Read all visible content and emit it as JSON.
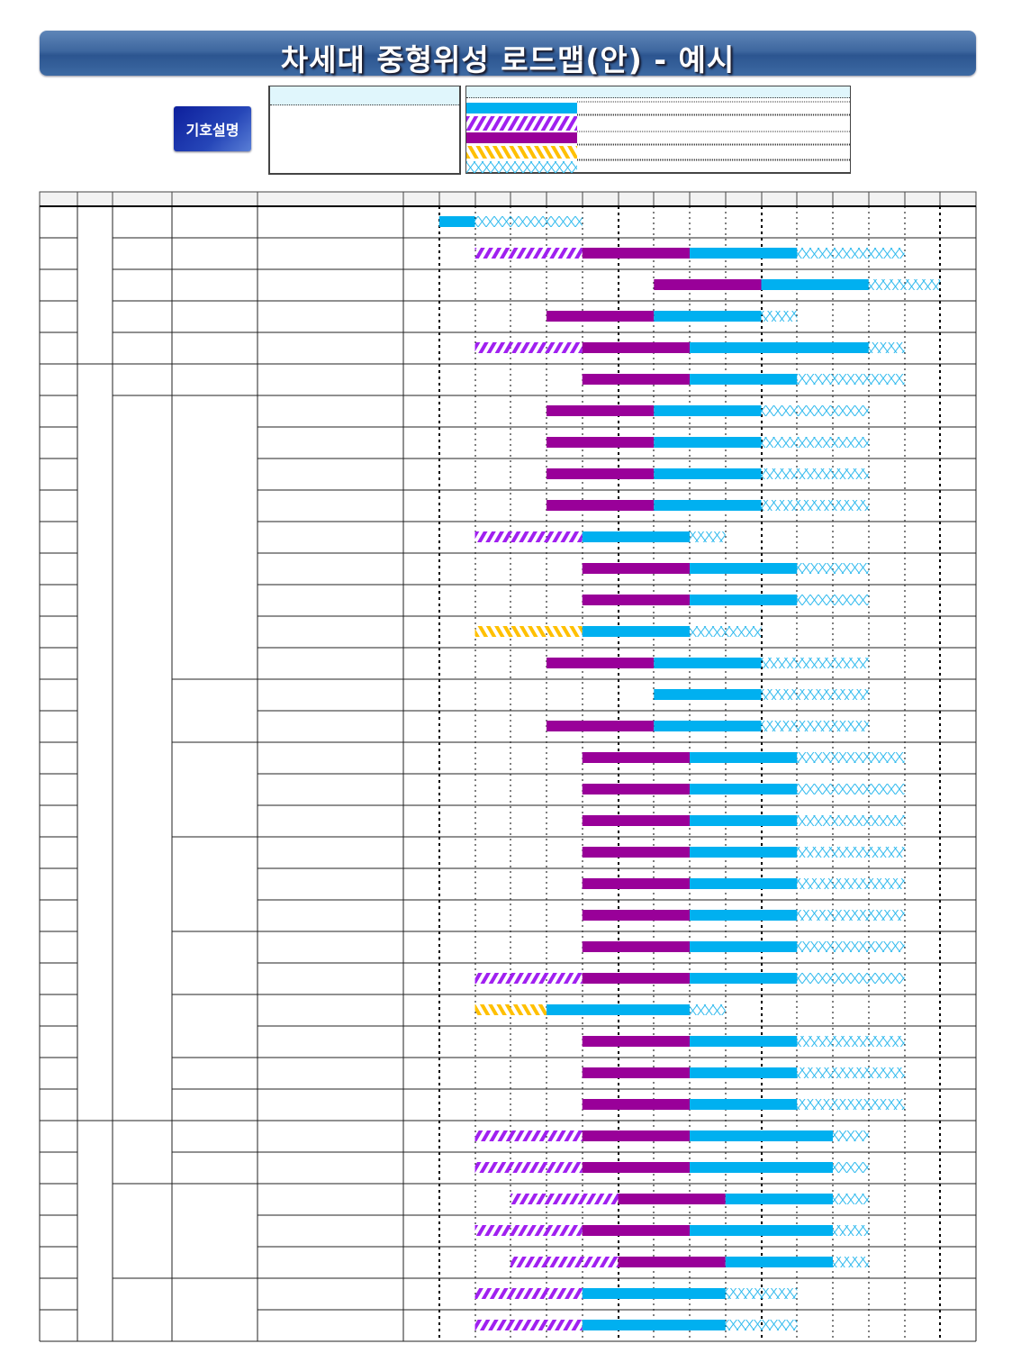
{
  "title": "차세대 중형위성 로드맵(안) - 예시",
  "legend": {
    "button_label": "기호설명",
    "swatches": [
      "blue",
      "purple-hatch",
      "purple",
      "orange-hatch",
      "blue-cross"
    ]
  },
  "colors": {
    "blue": "#00b0f0",
    "purple": "#990099",
    "purple_hatch": "#a020f0",
    "orange_hatch": "#ffc000",
    "cross": "#33bbee",
    "header_bg": "#f2f2f2"
  },
  "chart_data": {
    "type": "gantt",
    "title": "차세대 중형위성 로드맵(안) - 예시",
    "period_columns": 16,
    "segment_types": [
      "blue",
      "purple-hatch",
      "purple",
      "orange-hatch",
      "blue-cross"
    ],
    "rows": [
      [
        [
          1,
          2,
          "blue"
        ],
        [
          2,
          5,
          "blue-cross"
        ]
      ],
      [
        [
          2,
          5,
          "purple-hatch"
        ],
        [
          5,
          8,
          "purple"
        ],
        [
          8,
          11,
          "blue"
        ],
        [
          11,
          14,
          "blue-cross"
        ]
      ],
      [
        [
          7,
          10,
          "purple"
        ],
        [
          10,
          13,
          "blue"
        ],
        [
          13,
          15,
          "blue-cross"
        ]
      ],
      [
        [
          4,
          7,
          "purple"
        ],
        [
          7,
          10,
          "blue"
        ],
        [
          10,
          11,
          "blue-cross"
        ]
      ],
      [
        [
          2,
          5,
          "purple-hatch"
        ],
        [
          5,
          8,
          "purple"
        ],
        [
          8,
          13,
          "blue"
        ],
        [
          13,
          14,
          "blue-cross"
        ]
      ],
      [
        [
          5,
          8,
          "purple"
        ],
        [
          8,
          11,
          "blue"
        ],
        [
          11,
          14,
          "blue-cross"
        ]
      ],
      [
        [
          4,
          7,
          "purple"
        ],
        [
          7,
          10,
          "blue"
        ],
        [
          10,
          13,
          "blue-cross"
        ]
      ],
      [
        [
          4,
          7,
          "purple"
        ],
        [
          7,
          10,
          "blue"
        ],
        [
          10,
          13,
          "blue-cross"
        ]
      ],
      [
        [
          4,
          7,
          "purple"
        ],
        [
          7,
          10,
          "blue"
        ],
        [
          10,
          13,
          "blue-cross"
        ]
      ],
      [
        [
          4,
          7,
          "purple"
        ],
        [
          7,
          10,
          "blue"
        ],
        [
          10,
          13,
          "blue-cross"
        ]
      ],
      [
        [
          2,
          5,
          "purple-hatch"
        ],
        [
          5,
          8,
          "blue"
        ],
        [
          8,
          9,
          "blue-cross"
        ]
      ],
      [
        [
          5,
          8,
          "purple"
        ],
        [
          8,
          11,
          "blue"
        ],
        [
          11,
          13,
          "blue-cross"
        ]
      ],
      [
        [
          5,
          8,
          "purple"
        ],
        [
          8,
          11,
          "blue"
        ],
        [
          11,
          13,
          "blue-cross"
        ]
      ],
      [
        [
          2,
          5,
          "orange-hatch"
        ],
        [
          5,
          8,
          "blue"
        ],
        [
          8,
          10,
          "blue-cross"
        ]
      ],
      [
        [
          4,
          7,
          "purple"
        ],
        [
          7,
          10,
          "blue"
        ],
        [
          10,
          13,
          "blue-cross"
        ]
      ],
      [
        [
          7,
          10,
          "blue"
        ],
        [
          10,
          13,
          "blue-cross"
        ]
      ],
      [
        [
          4,
          7,
          "purple"
        ],
        [
          7,
          10,
          "blue"
        ],
        [
          10,
          13,
          "blue-cross"
        ]
      ],
      [
        [
          5,
          8,
          "purple"
        ],
        [
          8,
          11,
          "blue"
        ],
        [
          11,
          14,
          "blue-cross"
        ]
      ],
      [
        [
          5,
          8,
          "purple"
        ],
        [
          8,
          11,
          "blue"
        ],
        [
          11,
          14,
          "blue-cross"
        ]
      ],
      [
        [
          5,
          8,
          "purple"
        ],
        [
          8,
          11,
          "blue"
        ],
        [
          11,
          14,
          "blue-cross"
        ]
      ],
      [
        [
          5,
          8,
          "purple"
        ],
        [
          8,
          11,
          "blue"
        ],
        [
          11,
          14,
          "blue-cross"
        ]
      ],
      [
        [
          5,
          8,
          "purple"
        ],
        [
          8,
          11,
          "blue"
        ],
        [
          11,
          14,
          "blue-cross"
        ]
      ],
      [
        [
          5,
          8,
          "purple"
        ],
        [
          8,
          11,
          "blue"
        ],
        [
          11,
          14,
          "blue-cross"
        ]
      ],
      [
        [
          5,
          8,
          "purple"
        ],
        [
          8,
          11,
          "blue"
        ],
        [
          11,
          14,
          "blue-cross"
        ]
      ],
      [
        [
          2,
          5,
          "purple-hatch"
        ],
        [
          5,
          8,
          "purple"
        ],
        [
          8,
          11,
          "blue"
        ],
        [
          11,
          14,
          "blue-cross"
        ]
      ],
      [
        [
          2,
          4,
          "orange-hatch"
        ],
        [
          4,
          8,
          "blue"
        ],
        [
          8,
          9,
          "blue-cross"
        ]
      ],
      [
        [
          5,
          8,
          "purple"
        ],
        [
          8,
          11,
          "blue"
        ],
        [
          11,
          14,
          "blue-cross"
        ]
      ],
      [
        [
          5,
          8,
          "purple"
        ],
        [
          8,
          11,
          "blue"
        ],
        [
          11,
          14,
          "blue-cross"
        ]
      ],
      [
        [
          5,
          8,
          "purple"
        ],
        [
          8,
          11,
          "blue"
        ],
        [
          11,
          14,
          "blue-cross"
        ]
      ],
      [
        [
          2,
          5,
          "purple-hatch"
        ],
        [
          5,
          8,
          "purple"
        ],
        [
          8,
          12,
          "blue"
        ],
        [
          12,
          13,
          "blue-cross"
        ]
      ],
      [
        [
          2,
          5,
          "purple-hatch"
        ],
        [
          5,
          8,
          "purple"
        ],
        [
          8,
          12,
          "blue"
        ],
        [
          12,
          13,
          "blue-cross"
        ]
      ],
      [
        [
          3,
          6,
          "purple-hatch"
        ],
        [
          6,
          9,
          "purple"
        ],
        [
          9,
          12,
          "blue"
        ],
        [
          12,
          13,
          "blue-cross"
        ]
      ],
      [
        [
          2,
          5,
          "purple-hatch"
        ],
        [
          5,
          8,
          "purple"
        ],
        [
          8,
          12,
          "blue"
        ],
        [
          12,
          13,
          "blue-cross"
        ]
      ],
      [
        [
          3,
          6,
          "purple-hatch"
        ],
        [
          6,
          9,
          "purple"
        ],
        [
          9,
          12,
          "blue"
        ],
        [
          12,
          13,
          "blue-cross"
        ]
      ],
      [
        [
          2,
          5,
          "purple-hatch"
        ],
        [
          5,
          9,
          "blue"
        ],
        [
          9,
          11,
          "blue-cross"
        ]
      ],
      [
        [
          2,
          5,
          "purple-hatch"
        ],
        [
          5,
          9,
          "blue"
        ],
        [
          9,
          11,
          "blue-cross"
        ]
      ]
    ]
  }
}
